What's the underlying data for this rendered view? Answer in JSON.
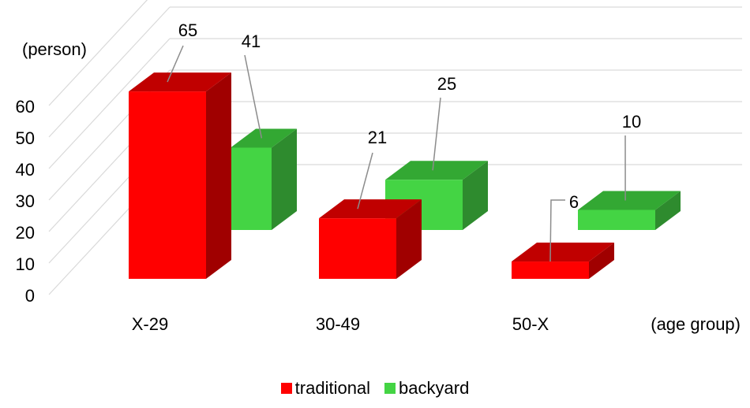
{
  "chart_data": {
    "type": "bar",
    "title": "",
    "ylabel": "(person)",
    "xlabel": "(age group)",
    "categories": [
      "X-29",
      "30-49",
      "50-X"
    ],
    "series": [
      {
        "name": "traditional",
        "values": [
          65,
          21,
          6
        ],
        "color": "#FF0000",
        "top_color": "#C00000",
        "side_color": "#A00000"
      },
      {
        "name": "backyard",
        "values": [
          41,
          25,
          10
        ],
        "color": "#44D444",
        "top_color": "#33A833",
        "side_color": "#2E8B2E"
      }
    ],
    "yticks": [
      0,
      10,
      20,
      30,
      40,
      50,
      60
    ],
    "ylim": [
      0,
      60
    ],
    "grid": true,
    "legend_position": "bottom"
  }
}
